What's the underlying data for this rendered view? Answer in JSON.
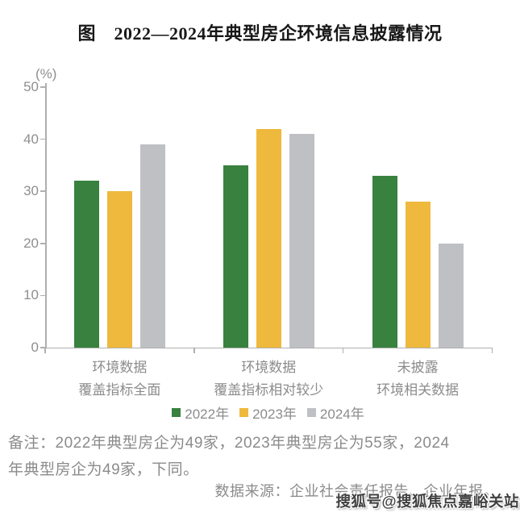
{
  "title": "图　2022—2024年典型房企环境信息披露情况",
  "chart_data": {
    "type": "bar",
    "title": "图　2022—2024年典型房企环境信息披露情况",
    "ylabel": "(%)",
    "xlabel": "",
    "ylim": [
      0,
      50
    ],
    "y_ticks": [
      0,
      10,
      20,
      30,
      40,
      50
    ],
    "grid": false,
    "legend_position": "bottom",
    "categories": [
      "环境数据覆盖指标全面",
      "环境数据覆盖指标相对较少",
      "未披露环境相关数据"
    ],
    "category_lines": [
      [
        "环境数据",
        "覆盖指标全面"
      ],
      [
        "环境数据",
        "覆盖指标相对较少"
      ],
      [
        "未披露",
        "环境相关数据"
      ]
    ],
    "series": [
      {
        "name": "2022年",
        "color": "#38813E",
        "values": [
          32,
          35,
          33
        ]
      },
      {
        "name": "2023年",
        "color": "#EEB93C",
        "values": [
          30,
          42,
          28
        ]
      },
      {
        "name": "2024年",
        "color": "#BEC0C4",
        "values": [
          39,
          41,
          20
        ]
      }
    ]
  },
  "notes": {
    "lines": [
      "备注：2022年典型房企为49家，2023年典型房企为55家，2024",
      "年典型房企为49家，下同。"
    ],
    "full_text": "备注：2022年典型房企为49家，2023年典型房企为55家，2024年典型房企为49家，下同。"
  },
  "source": "数据来源：企业社会责任报告、企业年报。",
  "watermark": "搜狐号@搜狐焦点嘉峪关站",
  "colors": {
    "axis": "#AFAFAF",
    "tick_text": "#8F8F8F",
    "label_text": "#8C8C8C",
    "note_text": "#8B8B8B",
    "title_text": "#181818"
  }
}
